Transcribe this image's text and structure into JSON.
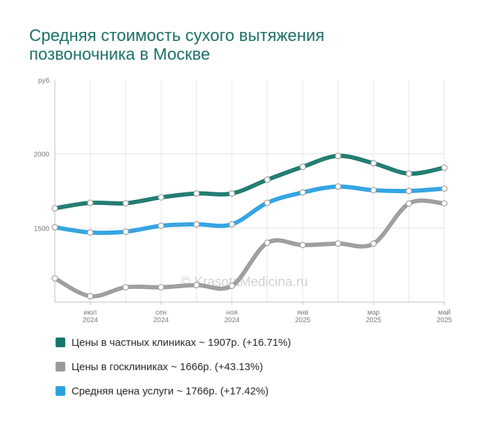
{
  "title": "Средняя стоимость сухого вытяжения позвоночника в Москве",
  "watermark": "© KrasotaMedicina.ru",
  "legend": [
    {
      "label": "Цены в частных клиниках",
      "summary": "~ 1907р. (+16.71%)",
      "color": "#17766a"
    },
    {
      "label": "Цены в госклиниках",
      "summary": "~ 1666р. (+43.13%)",
      "color": "#9a9a9a"
    },
    {
      "label": "Средняя цена услуги",
      "summary": "~ 1766р. (+17.42%)",
      "color": "#2aa0e0"
    }
  ],
  "chart_data": {
    "type": "line",
    "y_unit": "руб.",
    "ylim": [
      1000,
      2500
    ],
    "yticks": [
      1500,
      2000
    ],
    "x_count": 12,
    "xticks": [
      {
        "index": 1,
        "line1": "июл",
        "line2": "2024"
      },
      {
        "index": 3,
        "line1": "сен",
        "line2": "2024"
      },
      {
        "index": 5,
        "line1": "ноя",
        "line2": "2024"
      },
      {
        "index": 7,
        "line1": "янв",
        "line2": "2025"
      },
      {
        "index": 9,
        "line1": "мар",
        "line2": "2025"
      },
      {
        "index": 11,
        "line1": "май",
        "line2": "2025"
      }
    ],
    "grid": true,
    "series": [
      {
        "name": "Цены в госклиниках",
        "color": "#9a9a9a",
        "values": [
          1160,
          1040,
          1100,
          1100,
          1115,
          1110,
          1400,
          1385,
          1395,
          1395,
          1665,
          1666
        ]
      },
      {
        "name": "Средняя цена услуги",
        "color": "#2aa0e0",
        "values": [
          1505,
          1470,
          1475,
          1515,
          1525,
          1525,
          1670,
          1740,
          1780,
          1755,
          1750,
          1766
        ]
      },
      {
        "name": "Цены в частных клиниках",
        "color": "#17766a",
        "values": [
          1633,
          1670,
          1667,
          1707,
          1733,
          1733,
          1826,
          1913,
          1987,
          1937,
          1867,
          1907
        ]
      }
    ]
  }
}
